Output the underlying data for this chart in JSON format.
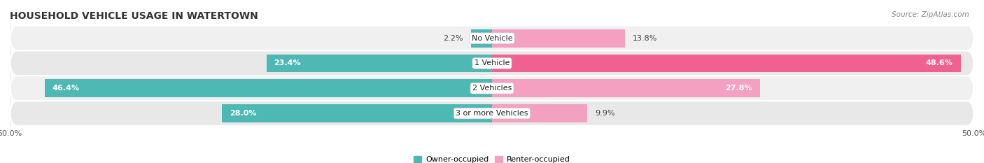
{
  "title": "HOUSEHOLD VEHICLE USAGE IN WATERTOWN",
  "source": "Source: ZipAtlas.com",
  "categories": [
    "No Vehicle",
    "1 Vehicle",
    "2 Vehicles",
    "3 or more Vehicles"
  ],
  "owner_values": [
    2.2,
    23.4,
    46.4,
    28.0
  ],
  "renter_values": [
    13.8,
    48.6,
    27.8,
    9.9
  ],
  "owner_color": "#4db8b4",
  "renter_color_light": "#f4a0c0",
  "renter_color_dark": "#f06090",
  "renter_colors": [
    "#f4a0c0",
    "#f06090",
    "#f4a0c0",
    "#f4a0c0"
  ],
  "row_bg_colors": [
    "#f0f0f0",
    "#e8e8e8",
    "#f0f0f0",
    "#e8e8e8"
  ],
  "xlim": [
    -50,
    50
  ],
  "legend_owner": "Owner-occupied",
  "legend_renter": "Renter-occupied",
  "title_fontsize": 10,
  "source_fontsize": 7.5,
  "label_fontsize": 8,
  "category_fontsize": 8,
  "bar_height": 0.72,
  "figsize": [
    14.06,
    2.33
  ],
  "dpi": 100
}
